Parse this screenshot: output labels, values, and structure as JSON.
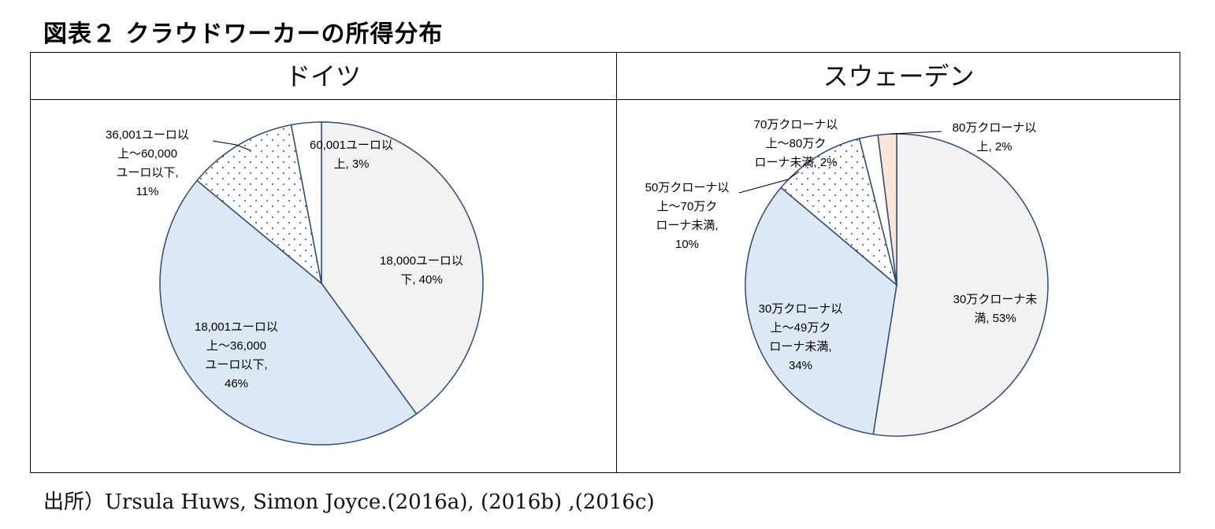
{
  "figure": {
    "title": "図表２ クラウドワーカーの所得分布",
    "source": "出所）Ursula Huws, Simon Joyce.(2016a), (2016b) ,(2016c)"
  },
  "panels": {
    "germany": {
      "title": "ドイツ"
    },
    "sweden": {
      "title": "スウェーデン"
    }
  },
  "chart_data": [
    {
      "type": "pie",
      "title": "ドイツ",
      "slices": [
        {
          "label": "18,000ユーロ以下",
          "value": 40,
          "display": [
            "18,000ユーロ以",
            "下, 40%"
          ],
          "fill": "#f2f2f2"
        },
        {
          "label": "18,001ユーロ以上～36,000ユーロ以下",
          "value": 46,
          "display": [
            "18,001ユーロ以",
            "上～36,000",
            "ユーロ以下,",
            "46%"
          ],
          "fill": "#dce9f5"
        },
        {
          "label": "36,001ユーロ以上～60,000ユーロ以下",
          "value": 11,
          "display": [
            "36,001ユーロ以",
            "上～60,000",
            "ユーロ以下,",
            "11%"
          ],
          "fill": "dots"
        },
        {
          "label": "60,001ユーロ以上",
          "value": 3,
          "display": [
            "60,001ユーロ以",
            "上, 3%"
          ],
          "fill": "#ffffff"
        }
      ]
    },
    {
      "type": "pie",
      "title": "スウェーデン",
      "slices": [
        {
          "label": "30万クローナ未満",
          "value": 53,
          "display": [
            "30万クローナ未",
            "満, 53%"
          ],
          "fill": "#f2f2f2"
        },
        {
          "label": "30万クローナ以上～49万クローナ未満",
          "value": 34,
          "display": [
            "30万クローナ以",
            "上～49万ク",
            "ローナ未満,",
            "34%"
          ],
          "fill": "#dce9f5"
        },
        {
          "label": "50万クローナ以上～70万クローナ未満",
          "value": 10,
          "display": [
            "50万クローナ以",
            "上～70万ク",
            "ローナ未満,",
            "10%"
          ],
          "fill": "dots"
        },
        {
          "label": "70万クローナ以上～80万クローナ未満",
          "value": 2,
          "display": [
            "70万クローナ以",
            "上～80万ク",
            "ローナ未満, 2%"
          ],
          "fill": "#ffffff"
        },
        {
          "label": "80万クローナ以上",
          "value": 2,
          "display": [
            "80万クローナ以",
            "上, 2%"
          ],
          "fill": "#fbe5d6"
        }
      ]
    }
  ],
  "colors": {
    "outline": "#2f4a7a",
    "dots": "#2f4a7a"
  }
}
